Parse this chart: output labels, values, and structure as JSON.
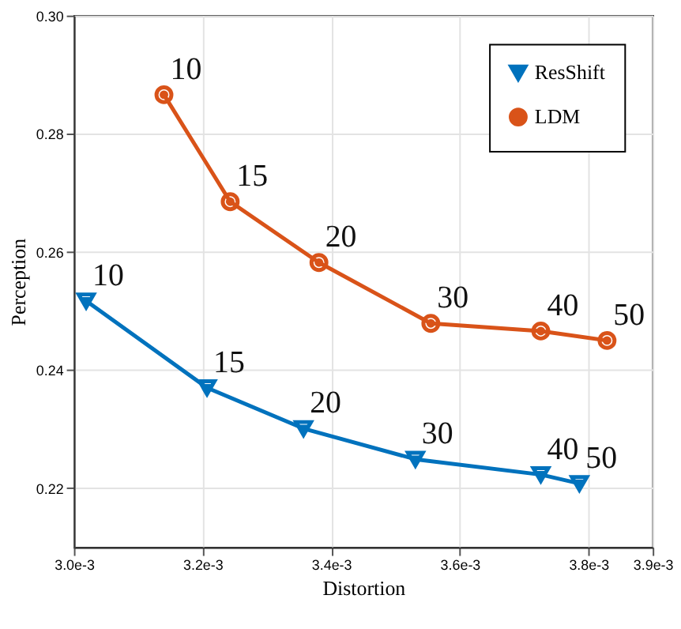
{
  "chart_data": {
    "type": "line",
    "xlabel": "Distortion",
    "ylabel": "Perception",
    "series": [
      {
        "name": "ResShift",
        "color": "#0072bd",
        "marker": "triangle",
        "x": [
          0.003019,
          0.003207,
          0.003357,
          0.003531,
          0.003726,
          0.003786
        ],
        "values": [
          0.2517,
          0.237,
          0.2301,
          0.2249,
          0.2223,
          0.2208
        ]
      },
      {
        "name": "LDM",
        "color": "#d95319",
        "marker": "circle",
        "x": [
          0.00314,
          0.003243,
          0.003381,
          0.003555,
          0.003726,
          0.003829
        ],
        "values": [
          0.2866,
          0.2685,
          0.2582,
          0.2479,
          0.2466,
          0.245
        ]
      }
    ],
    "annotations": [
      {
        "text": "10",
        "x": 0.003019,
        "y": 0.2517
      },
      {
        "text": "15",
        "x": 0.003207,
        "y": 0.237
      },
      {
        "text": "20",
        "x": 0.003357,
        "y": 0.2301
      },
      {
        "text": "30",
        "x": 0.003531,
        "y": 0.2249
      },
      {
        "text": "40",
        "x": 0.003726,
        "y": 0.2223
      },
      {
        "text": "50",
        "x": 0.003786,
        "y": 0.2208
      },
      {
        "text": "10",
        "x": 0.00314,
        "y": 0.2866
      },
      {
        "text": "15",
        "x": 0.003243,
        "y": 0.2685
      },
      {
        "text": "20",
        "x": 0.003381,
        "y": 0.2582
      },
      {
        "text": "30",
        "x": 0.003555,
        "y": 0.2479
      },
      {
        "text": "40",
        "x": 0.003726,
        "y": 0.2466
      },
      {
        "text": "50",
        "x": 0.003829,
        "y": 0.245
      }
    ],
    "xlim": [
      0.003,
      0.0039
    ],
    "xticks": [
      {
        "value": 0.003,
        "label": "3.0e-3"
      },
      {
        "value": 0.0032,
        "label": "3.2e-3"
      },
      {
        "value": 0.0034,
        "label": "3.4e-3"
      },
      {
        "value": 0.0036,
        "label": "3.6e-3"
      },
      {
        "value": 0.0038,
        "label": "3.8e-3"
      },
      {
        "value": 0.0039,
        "label": "3.9e-3"
      }
    ],
    "ylim": [
      0.21,
      0.3
    ],
    "yticks": [
      0.22,
      0.24,
      0.26,
      0.28,
      {
        "value": 0.3,
        "label": "0.30"
      }
    ],
    "grid": true,
    "legend": "top right",
    "line_style": "solid"
  }
}
